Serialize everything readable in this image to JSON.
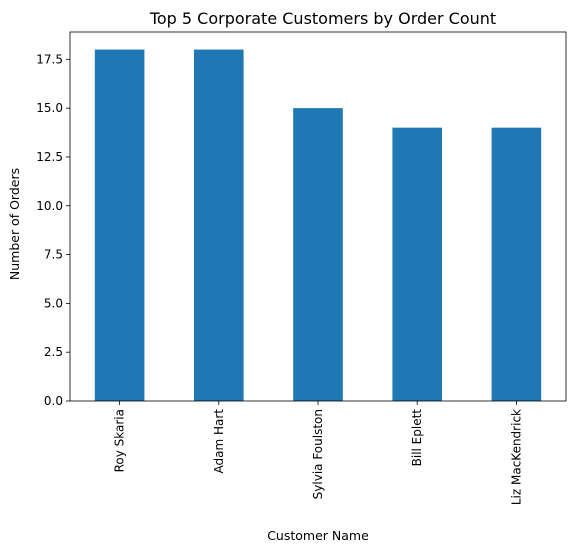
{
  "chart_data": {
    "type": "bar",
    "title": "Top 5 Corporate Customers by Order Count",
    "xlabel": "Customer Name",
    "ylabel": "Number of Orders",
    "categories": [
      "Roy Skaria",
      "Adam Hart",
      "Sylvia Foulston",
      "Bill Eplett",
      "Liz MacKendrick"
    ],
    "values": [
      18,
      18,
      15,
      14,
      14
    ],
    "ylim": [
      0,
      18.9
    ],
    "yticks": [
      0.0,
      2.5,
      5.0,
      7.5,
      10.0,
      12.5,
      15.0,
      17.5
    ],
    "ytick_labels": [
      "0.0",
      "2.5",
      "5.0",
      "7.5",
      "10.0",
      "12.5",
      "15.0",
      "17.5"
    ],
    "bar_color": "#1f77b4",
    "grid": false,
    "legend": false
  }
}
